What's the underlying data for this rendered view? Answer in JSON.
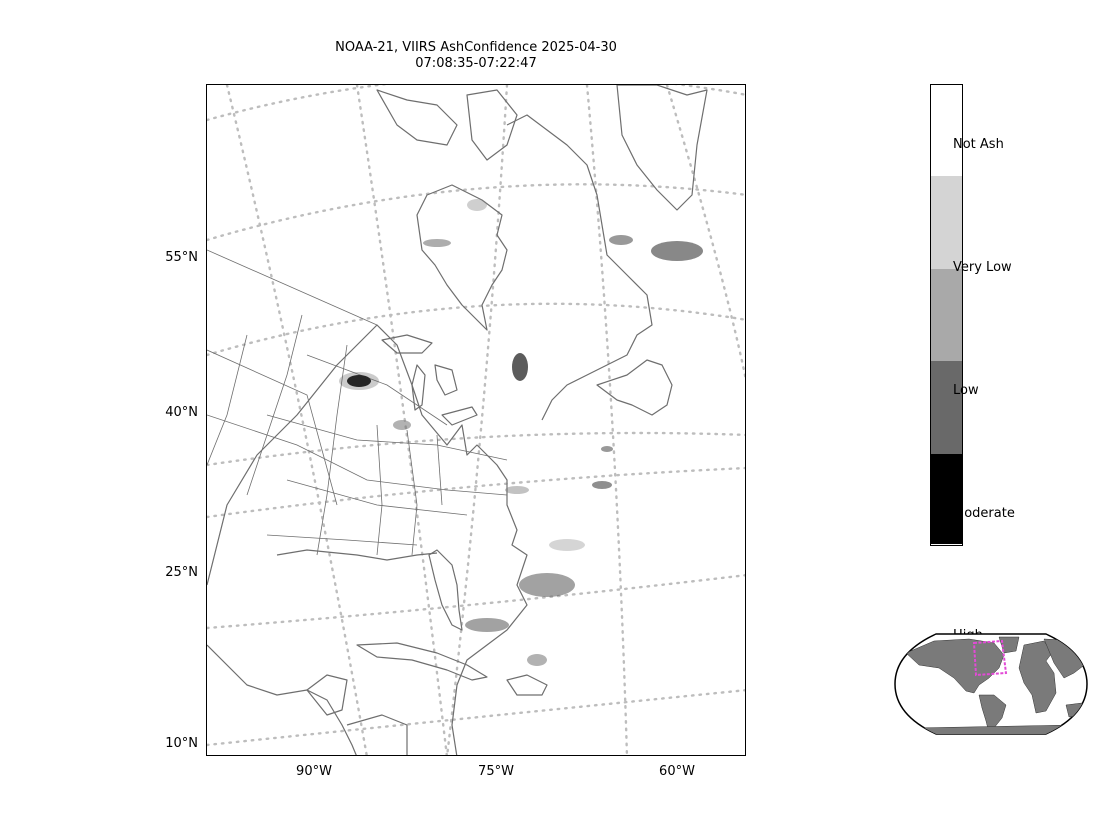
{
  "title": {
    "line1": "NOAA-21, VIIRS AshConfidence 2025-04-30",
    "line2": "07:08:35-07:22:47"
  },
  "axes": {
    "lat_labels": [
      "55°N",
      "40°N",
      "25°N",
      "10°N"
    ],
    "lon_labels": [
      "90°W",
      "75°W",
      "60°W"
    ]
  },
  "colorbar": {
    "categories": [
      {
        "label": "Not Ash",
        "color": "#ffffff"
      },
      {
        "label": "Very Low",
        "color": "#d4d4d4"
      },
      {
        "label": "Low",
        "color": "#a9a9a9"
      },
      {
        "label": "Moderate",
        "color": "#696969"
      },
      {
        "label": "High",
        "color": "#000000"
      }
    ]
  },
  "colors": {
    "coastline": "#6e6e6e",
    "graticule": "#bdbdbd",
    "inset_land": "#7a7a7a",
    "inset_box": "#e24ad6"
  }
}
